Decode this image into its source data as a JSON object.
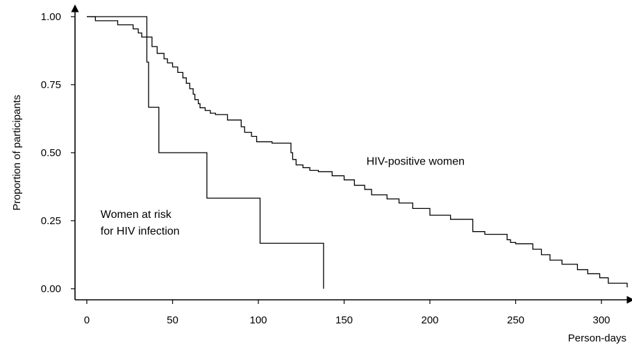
{
  "chart_data": {
    "type": "line",
    "step": true,
    "xlabel": "Person-days",
    "ylabel": "Proportion of participants",
    "xlim": [
      -7,
      316
    ],
    "ylim": [
      0,
      1.02
    ],
    "x_ticks": [
      0,
      50,
      100,
      150,
      200,
      250,
      300
    ],
    "x_tick_labels": [
      "0",
      "50",
      "100",
      "150",
      "200",
      "250",
      "300"
    ],
    "y_ticks": [
      0,
      0.25,
      0.5,
      0.75,
      1.0
    ],
    "y_tick_labels": [
      "0.00",
      "0.25",
      "0.50",
      "0.75",
      "1.00"
    ],
    "grid": false,
    "annotations": [
      {
        "id": "annot-hiv-positive",
        "lines": [
          "HIV-positive women"
        ],
        "x": 163,
        "y": 0.455
      },
      {
        "id": "annot-at-risk",
        "lines": [
          "Women at risk",
          "for HIV infection"
        ],
        "x": 8,
        "y": 0.26
      }
    ],
    "series": [
      {
        "id": "at-risk",
        "x": [
          0,
          35,
          36,
          42,
          70,
          101,
          138
        ],
        "y": [
          1.0,
          0.833,
          0.667,
          0.5,
          0.333,
          0.167,
          0.0
        ]
      },
      {
        "id": "hiv-positive",
        "x": [
          0,
          5,
          18,
          27,
          30,
          32,
          38,
          41,
          45,
          47,
          50,
          53,
          56,
          58,
          60,
          62,
          63,
          65,
          66,
          69,
          72,
          75,
          78,
          82,
          90,
          92,
          96,
          99,
          104,
          108,
          119,
          120,
          122,
          126,
          130,
          135,
          143,
          150,
          156,
          162,
          166,
          175,
          182,
          190,
          200,
          212,
          225,
          232,
          245,
          247,
          250,
          260,
          265,
          270,
          277,
          286,
          292,
          299,
          304,
          315
        ],
        "y": [
          1.0,
          0.985,
          0.97,
          0.955,
          0.94,
          0.925,
          0.89,
          0.865,
          0.845,
          0.83,
          0.815,
          0.795,
          0.775,
          0.755,
          0.735,
          0.715,
          0.695,
          0.68,
          0.665,
          0.655,
          0.645,
          0.64,
          0.64,
          0.62,
          0.595,
          0.575,
          0.56,
          0.54,
          0.54,
          0.535,
          0.5,
          0.475,
          0.455,
          0.445,
          0.435,
          0.43,
          0.415,
          0.4,
          0.38,
          0.365,
          0.345,
          0.33,
          0.315,
          0.295,
          0.27,
          0.255,
          0.21,
          0.2,
          0.18,
          0.17,
          0.165,
          0.145,
          0.125,
          0.105,
          0.09,
          0.07,
          0.055,
          0.04,
          0.02,
          0.005
        ]
      }
    ]
  }
}
